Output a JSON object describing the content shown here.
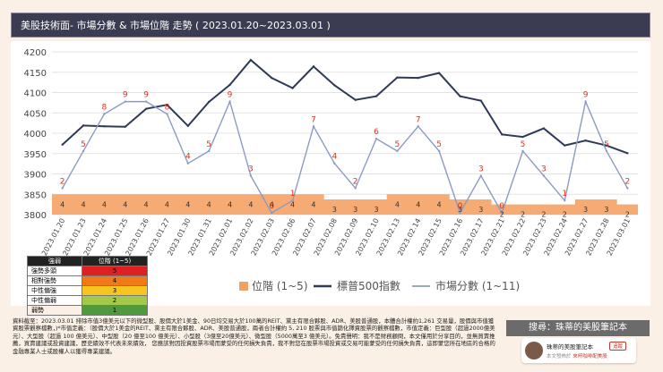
{
  "header": {
    "title": "美股技術面- 市場分數 & 市場位階 走勢 ( 2023.01.20~2023.03.01 )"
  },
  "chart_data": {
    "type": "line",
    "title": "美股技術面- 市場分數 & 市場位階 走勢 ( 2023.01.20~2023.03.01 )",
    "categories": [
      "2023.01.20",
      "2023.01.23",
      "2023.01.24",
      "2023.01.25",
      "2023.01.26",
      "2023.01.27",
      "2023.01.30",
      "2023.01.31",
      "2023.02.01",
      "2023.02.02",
      "2023.02.03",
      "2023.02.06",
      "2023.02.07",
      "2023.02.08",
      "2023.02.09",
      "2023.02.10",
      "2023.02.13",
      "2023.02.14",
      "2023.02.15",
      "2023.02.16",
      "2023.02.17",
      "2023.02.21",
      "2023.02.22",
      "2023.02.23",
      "2023.02.24",
      "2023.02.27",
      "2023.02.28",
      "2023.03.01"
    ],
    "ylim": [
      3800,
      4200
    ],
    "yticks": [
      3800,
      3850,
      3900,
      3950,
      4000,
      4050,
      4100,
      4150,
      4200
    ],
    "series": [
      {
        "name": "位階 (1~5)",
        "type": "area",
        "color": "#f4a264",
        "values": [
          4,
          4,
          4,
          4,
          4,
          4,
          4,
          4,
          4,
          4,
          4,
          4,
          4,
          3,
          3,
          3,
          4,
          4,
          4,
          3,
          3,
          2,
          2,
          2,
          2,
          3,
          3,
          2
        ]
      },
      {
        "name": "標普500指數",
        "type": "line",
        "color": "#2e3a57",
        "values": [
          3972,
          4019,
          4017,
          4016,
          4060,
          4070,
          4018,
          4077,
          4119,
          4180,
          4136,
          4111,
          4164,
          4118,
          4082,
          4091,
          4137,
          4136,
          4148,
          4091,
          4080,
          3997,
          3991,
          4012,
          3970,
          3982,
          3970,
          3951
        ]
      },
      {
        "name": "市場分數 (1~11)",
        "type": "line",
        "color": "#8c9bc2",
        "values": [
          2,
          5,
          8,
          9,
          9,
          8,
          4,
          5,
          9,
          3,
          0,
          1,
          7,
          4,
          2,
          6,
          5,
          7,
          5,
          0,
          3,
          0,
          5,
          3,
          1,
          9,
          5,
          2
        ]
      }
    ],
    "legend": [
      "位階 (1~5)",
      "標普500指數",
      "市場分數 (1~11)"
    ]
  },
  "level_table": {
    "headers": [
      "強弱",
      "位階 (1~5)"
    ],
    "rows": [
      {
        "label": "強勢多頭",
        "value": "5",
        "color": "#e02020"
      },
      {
        "label": "相對強勢",
        "value": "4",
        "color": "#f07a1a"
      },
      {
        "label": "中性偏強",
        "value": "3",
        "color": "#f7c51e"
      },
      {
        "label": "中性偏弱",
        "value": "2",
        "color": "#a4c84a"
      },
      {
        "label": "弱勢",
        "value": "1",
        "color": "#4f9a3c"
      }
    ]
  },
  "footer": {
    "text": "資料截至：2023.03.01 排除市值3億美元以下的微型股、股價大於1美金、90日均交易大於100萬的REIT、黨主有限合夥股、ADR、美股普通股，本體合計權約1,261 交易量，股價與市值獲資股票觀察檔數，)*市值定義：（股價大於1美金的REIT、黨主有限合夥股、ADR、美股普通股，兩者合計權約 5, 210 股票與市值篩化擇資股票的觀察檔數，市值定義：巨型股（超過2000億美元）、大型股（超過 100 億美元）、中型股（20 億至100 億美元）、小型股（3億至20億美元）、微型股（5000萬至3 億美元）。免責聲明：我不是財務顧問，本文僅用於分享目的，並無買賣推薦，買賣建議或投資建議，歷史績效不代表未來績效， 您應該對因投資股票市場而蒙受的任何損失負責，我不對您在股票市場投資或交易可能蒙受的任何損失負責，這即蒙您所在地區的合格的金融專業人士或股權人以獲得專業建議。"
  },
  "promo": {
    "search": "搜尋：珠蒂的美股筆記本",
    "name": "珠蒂的美股筆記本",
    "follow": "追蹤",
    "sub_prefix": "本文發佈於",
    "sub_link": "來杯咖啡配美股"
  }
}
